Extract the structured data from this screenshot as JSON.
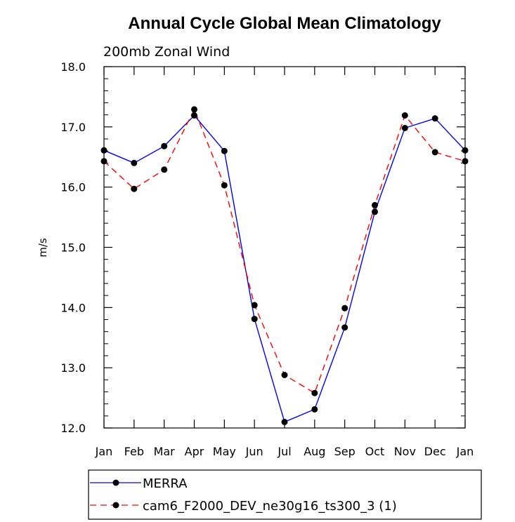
{
  "chart_data": {
    "type": "line",
    "title": "Annual Cycle Global Mean Climatology",
    "subtitle": "200mb Zonal Wind",
    "xlabel": "",
    "ylabel": "m/s",
    "categories": [
      "Jan",
      "Feb",
      "Mar",
      "Apr",
      "May",
      "Jun",
      "Jul",
      "Aug",
      "Sep",
      "Oct",
      "Nov",
      "Dec",
      "Jan"
    ],
    "ylim": [
      12.0,
      18.0
    ],
    "yticks": [
      "12.0",
      "13.0",
      "14.0",
      "15.0",
      "16.0",
      "17.0",
      "18.0"
    ],
    "legend_position": "bottom",
    "grid": false,
    "series": [
      {
        "name": "MERRA",
        "color": "#0000ff",
        "style": "solid",
        "marker": "filled-circle",
        "values": [
          16.61,
          16.4,
          16.68,
          17.19,
          16.6,
          13.81,
          12.1,
          12.31,
          13.67,
          15.59,
          16.98,
          17.14,
          16.61
        ]
      },
      {
        "name": "cam6_F2000_DEV_ne30g16_ts300_3 (1)",
        "color": "#ff0000",
        "style": "dashed",
        "marker": "filled-circle",
        "values": [
          16.43,
          15.97,
          16.29,
          17.29,
          16.03,
          14.04,
          12.88,
          12.58,
          13.99,
          15.7,
          17.19,
          16.58,
          16.43
        ]
      }
    ]
  }
}
